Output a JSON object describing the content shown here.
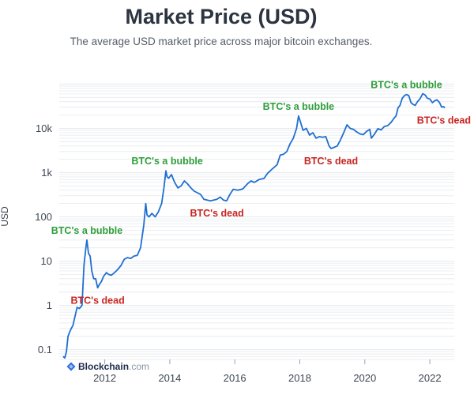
{
  "header": {
    "title": "Market Price (USD)",
    "subtitle": "The average USD market price across major bitcoin exchanges."
  },
  "branding": {
    "name": "Blockchain",
    "tld": ".com",
    "logo_icon": "blockchain-logo-icon"
  },
  "colors": {
    "line": "#1f6fd1",
    "grid": "#e6e9ee",
    "bubble_text": "#2e9e3b",
    "dead_text": "#c8241f"
  },
  "chart_data": {
    "type": "line",
    "title": "Market Price (USD)",
    "subtitle": "The average USD market price across major bitcoin exchanges.",
    "xlabel": "",
    "ylabel": "USD",
    "y_scale": "log",
    "xlim": [
      2010.6,
      2022.75
    ],
    "ylim": [
      0.06,
      160000
    ],
    "x_ticks": [
      {
        "value": 2012,
        "label": "2012"
      },
      {
        "value": 2014,
        "label": "2014"
      },
      {
        "value": 2016,
        "label": "2016"
      },
      {
        "value": 2018,
        "label": "2018"
      },
      {
        "value": 2020,
        "label": "2020"
      },
      {
        "value": 2022,
        "label": "2022"
      }
    ],
    "y_ticks": [
      {
        "value": 0.1,
        "label": "0.1"
      },
      {
        "value": 1,
        "label": "1"
      },
      {
        "value": 10,
        "label": "10"
      },
      {
        "value": 100,
        "label": "100"
      },
      {
        "value": 1000,
        "label": "1k"
      },
      {
        "value": 10000,
        "label": "10k"
      }
    ],
    "grid": true,
    "series": [
      {
        "name": "Market Price (USD)",
        "x": [
          2010.72,
          2010.77,
          2010.82,
          2010.87,
          2010.92,
          2010.97,
          2011.02,
          2011.08,
          2011.15,
          2011.22,
          2011.3,
          2011.36,
          2011.42,
          2011.45,
          2011.5,
          2011.55,
          2011.6,
          2011.66,
          2011.72,
          2011.78,
          2011.84,
          2011.9,
          2011.96,
          2012.05,
          2012.12,
          2012.2,
          2012.3,
          2012.4,
          2012.5,
          2012.6,
          2012.7,
          2012.8,
          2012.9,
          2013.0,
          2013.1,
          2013.2,
          2013.26,
          2013.3,
          2013.36,
          2013.45,
          2013.55,
          2013.65,
          2013.75,
          2013.82,
          2013.88,
          2013.92,
          2013.97,
          2014.05,
          2014.15,
          2014.25,
          2014.35,
          2014.45,
          2014.55,
          2014.65,
          2014.75,
          2014.85,
          2014.95,
          2015.05,
          2015.15,
          2015.25,
          2015.35,
          2015.45,
          2015.55,
          2015.65,
          2015.75,
          2015.85,
          2015.95,
          2016.1,
          2016.25,
          2016.4,
          2016.5,
          2016.6,
          2016.75,
          2016.9,
          2017.0,
          2017.15,
          2017.3,
          2017.4,
          2017.5,
          2017.6,
          2017.7,
          2017.8,
          2017.9,
          2017.96,
          2018.02,
          2018.1,
          2018.2,
          2018.3,
          2018.4,
          2018.5,
          2018.6,
          2018.7,
          2018.8,
          2018.9,
          2018.96,
          2019.05,
          2019.15,
          2019.25,
          2019.35,
          2019.45,
          2019.55,
          2019.65,
          2019.75,
          2019.85,
          2019.95,
          2020.05,
          2020.15,
          2020.2,
          2020.3,
          2020.4,
          2020.5,
          2020.6,
          2020.7,
          2020.8,
          2020.9,
          2020.96,
          2021.02,
          2021.08,
          2021.15,
          2021.22,
          2021.28,
          2021.35,
          2021.42,
          2021.48,
          2021.55,
          2021.62,
          2021.7,
          2021.78,
          2021.86,
          2021.92,
          2022.0,
          2022.08,
          2022.15,
          2022.22,
          2022.3,
          2022.36,
          2022.42,
          2022.46
        ],
        "values": [
          0.07,
          0.065,
          0.09,
          0.2,
          0.25,
          0.3,
          0.35,
          0.55,
          0.9,
          0.85,
          1.0,
          8,
          20,
          30,
          15,
          13,
          6,
          4,
          4,
          2.5,
          3,
          3.5,
          4.5,
          5.5,
          5,
          4.8,
          5.5,
          6.5,
          8,
          11,
          12,
          11.5,
          13,
          13.5,
          20,
          65,
          200,
          110,
          100,
          120,
          100,
          130,
          200,
          450,
          1100,
          800,
          750,
          900,
          600,
          450,
          500,
          650,
          550,
          450,
          380,
          350,
          320,
          250,
          240,
          230,
          240,
          250,
          280,
          240,
          230,
          320,
          420,
          400,
          430,
          570,
          650,
          600,
          700,
          740,
          950,
          1200,
          1500,
          2500,
          2600,
          3000,
          4500,
          6000,
          10000,
          19000,
          14000,
          9000,
          10000,
          7000,
          8000,
          6000,
          6500,
          6300,
          6500,
          4000,
          3500,
          3700,
          4000,
          5500,
          8000,
          12000,
          10000,
          9500,
          8300,
          7500,
          7200,
          8500,
          9500,
          6000,
          7500,
          9800,
          9200,
          11000,
          11500,
          13500,
          17000,
          19000,
          29000,
          33000,
          48000,
          55000,
          58000,
          55000,
          38000,
          35000,
          33000,
          40000,
          47000,
          61000,
          56000,
          48000,
          46000,
          38000,
          42000,
          44000,
          38000,
          30000,
          31000,
          29000
        ]
      }
    ],
    "annotations": [
      {
        "text": "BTC's a bubble",
        "kind": "bubble",
        "x": 2011.45,
        "y": 30
      },
      {
        "text": "BTC's dead",
        "kind": "dead",
        "x": 2011.78,
        "y": 2.5
      },
      {
        "text": "BTC's a bubble",
        "kind": "bubble",
        "x": 2013.92,
        "y": 1100
      },
      {
        "text": "BTC's dead",
        "kind": "dead",
        "x": 2015.45,
        "y": 230
      },
      {
        "text": "BTC's a bubble",
        "kind": "bubble",
        "x": 2017.96,
        "y": 19000
      },
      {
        "text": "BTC's dead",
        "kind": "dead",
        "x": 2018.96,
        "y": 3500
      },
      {
        "text": "BTC's a bubble",
        "kind": "bubble",
        "x": 2021.28,
        "y": 58000
      },
      {
        "text": "BTC's dead",
        "kind": "dead",
        "x": 2022.4,
        "y": 29000
      }
    ]
  }
}
